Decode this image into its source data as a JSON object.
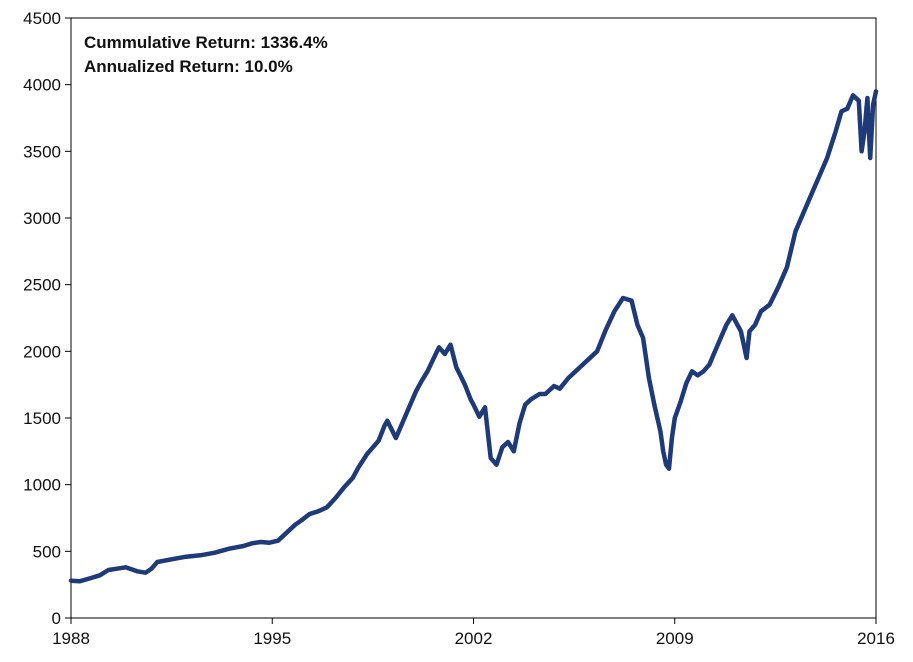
{
  "chart_data": {
    "type": "line",
    "title": "",
    "xlabel": "",
    "ylabel": "",
    "xlim": [
      1988,
      2016
    ],
    "ylim": [
      0,
      4500
    ],
    "x_ticks": [
      "1988",
      "1995",
      "2002",
      "2009",
      "2016"
    ],
    "y_ticks": [
      "0",
      "500",
      "1000",
      "1500",
      "2000",
      "2500",
      "3000",
      "3500",
      "4000",
      "4500"
    ],
    "grid": false,
    "legend": "none",
    "line_color": "#1f3a78",
    "annotations": [
      "Cummulative  Return: 1336.4%",
      "Annualized  Return: 10.0%"
    ],
    "series": [
      {
        "x": [
          1988.0,
          1988.3,
          1988.7,
          1989.0,
          1989.3,
          1989.6,
          1989.9,
          1990.1,
          1990.3,
          1990.6,
          1990.8,
          1991.0,
          1991.5,
          1992.0,
          1992.5,
          1993.0,
          1993.5,
          1994.0,
          1994.3,
          1994.6,
          1994.9,
          1995.2,
          1995.5,
          1995.8,
          1996.0,
          1996.3,
          1996.6,
          1996.9,
          1997.2,
          1997.5,
          1997.8,
          1998.0,
          1998.3,
          1998.5,
          1998.7,
          1998.9,
          1999.0,
          1999.3,
          1999.6,
          1999.8,
          2000.0,
          2000.2,
          2000.4,
          2000.6,
          2000.8,
          2001.0,
          2001.2,
          2001.4,
          2001.7,
          2001.9,
          2002.0,
          2002.2,
          2002.4,
          2002.6,
          2002.8,
          2003.0,
          2003.2,
          2003.4,
          2003.6,
          2003.8,
          2004.0,
          2004.3,
          2004.5,
          2004.8,
          2005.0,
          2005.3,
          2005.6,
          2006.0,
          2006.3,
          2006.6,
          2006.9,
          2007.2,
          2007.5,
          2007.7,
          2007.9,
          2008.1,
          2008.3,
          2008.5,
          2008.6,
          2008.7,
          2008.8,
          2008.9,
          2009.0,
          2009.2,
          2009.4,
          2009.6,
          2009.8,
          2010.0,
          2010.2,
          2010.4,
          2010.6,
          2010.8,
          2011.0,
          2011.3,
          2011.5,
          2011.6,
          2011.8,
          2012.0,
          2012.3,
          2012.6,
          2012.9,
          2013.2,
          2013.5,
          2013.8,
          2014.0,
          2014.3,
          2014.6,
          2014.8,
          2015.0,
          2015.2,
          2015.4,
          2015.5,
          2015.6,
          2015.7,
          2015.8,
          2015.9,
          2016.0
        ],
        "y": [
          280,
          275,
          300,
          320,
          360,
          370,
          380,
          365,
          350,
          340,
          370,
          420,
          440,
          460,
          470,
          490,
          520,
          540,
          560,
          570,
          565,
          580,
          640,
          700,
          730,
          780,
          800,
          830,
          900,
          980,
          1050,
          1130,
          1230,
          1280,
          1330,
          1440,
          1480,
          1350,
          1500,
          1600,
          1700,
          1780,
          1850,
          1940,
          2030,
          1980,
          2050,
          1880,
          1750,
          1640,
          1600,
          1510,
          1580,
          1200,
          1150,
          1280,
          1320,
          1250,
          1460,
          1600,
          1640,
          1680,
          1680,
          1740,
          1720,
          1800,
          1860,
          1940,
          2000,
          2160,
          2300,
          2400,
          2380,
          2200,
          2100,
          1800,
          1590,
          1400,
          1250,
          1150,
          1120,
          1350,
          1500,
          1620,
          1760,
          1850,
          1820,
          1850,
          1900,
          2000,
          2100,
          2200,
          2270,
          2150,
          1950,
          2150,
          2200,
          2300,
          2350,
          2480,
          2630,
          2900,
          3050,
          3200,
          3300,
          3450,
          3650,
          3800,
          3820,
          3920,
          3880,
          3500,
          3650,
          3900,
          3450,
          3850,
          3950
        ]
      }
    ]
  }
}
